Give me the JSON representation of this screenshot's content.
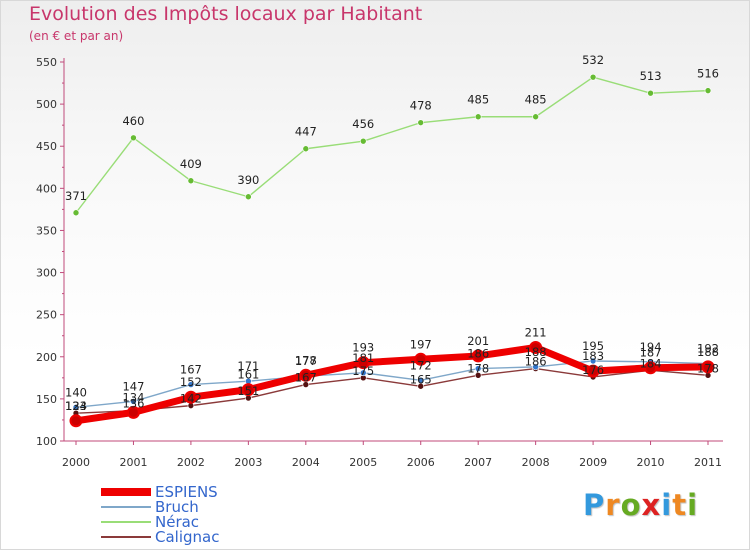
{
  "chart_data": {
    "type": "line",
    "title": "Evolution des Impôts locaux par Habitant",
    "subtitle": "(en € et par an)",
    "xlabel": "",
    "ylabel": "",
    "categories": [
      "2000",
      "2001",
      "2002",
      "2003",
      "2004",
      "2005",
      "2006",
      "2007",
      "2008",
      "2009",
      "2010",
      "2011"
    ],
    "ylim": [
      100,
      550
    ],
    "yticks": [
      100,
      150,
      200,
      250,
      300,
      350,
      400,
      450,
      500,
      550
    ],
    "series": [
      {
        "name": "ESPIENS",
        "color": "#ee0000",
        "marker_color": "#cc0000",
        "values": [
          124,
          134,
          152,
          161,
          178,
          193,
          197,
          201,
          211,
          183,
          187,
          188
        ],
        "labels": [
          "124",
          "134",
          "152",
          "161",
          "178",
          "193",
          "197",
          "201",
          "211",
          "183",
          "187",
          "188"
        ]
      },
      {
        "name": "Bruch",
        "color": "#7fa7c9",
        "marker_color": "#3377cc",
        "values": [
          140,
          147,
          167,
          171,
          177,
          181,
          172,
          186,
          188,
          195,
          194,
          192
        ],
        "labels": [
          "140",
          "147",
          "167",
          "171",
          "177",
          "181",
          "172",
          "186",
          "188",
          "195",
          "194",
          "192"
        ]
      },
      {
        "name": "Nérac",
        "color": "#99dd77",
        "marker_color": "#66bb33",
        "values": [
          371,
          460,
          409,
          390,
          447,
          456,
          478,
          485,
          485,
          532,
          513,
          516
        ],
        "labels": [
          "371",
          "460",
          "409",
          "390",
          "447",
          "456",
          "478",
          "485",
          "485",
          "532",
          "513",
          "516"
        ]
      },
      {
        "name": "Calignac",
        "color": "#8b3a3a",
        "marker_color": "#551111",
        "values": [
          133,
          136,
          142,
          151,
          167,
          175,
          165,
          178,
          186,
          176,
          184,
          178
        ],
        "labels": [
          "133",
          "136",
          "142",
          "151",
          "167",
          "175",
          "165",
          "178",
          "186",
          "176",
          "184",
          "178"
        ]
      }
    ],
    "grid": false,
    "legend": "bottom-left"
  },
  "logo": {
    "text": "Proxiti",
    "colors": [
      "#3399dd",
      "#ee8822",
      "#66aa22",
      "#dd2222",
      "#3399dd",
      "#ee8822",
      "#66aa22"
    ]
  }
}
